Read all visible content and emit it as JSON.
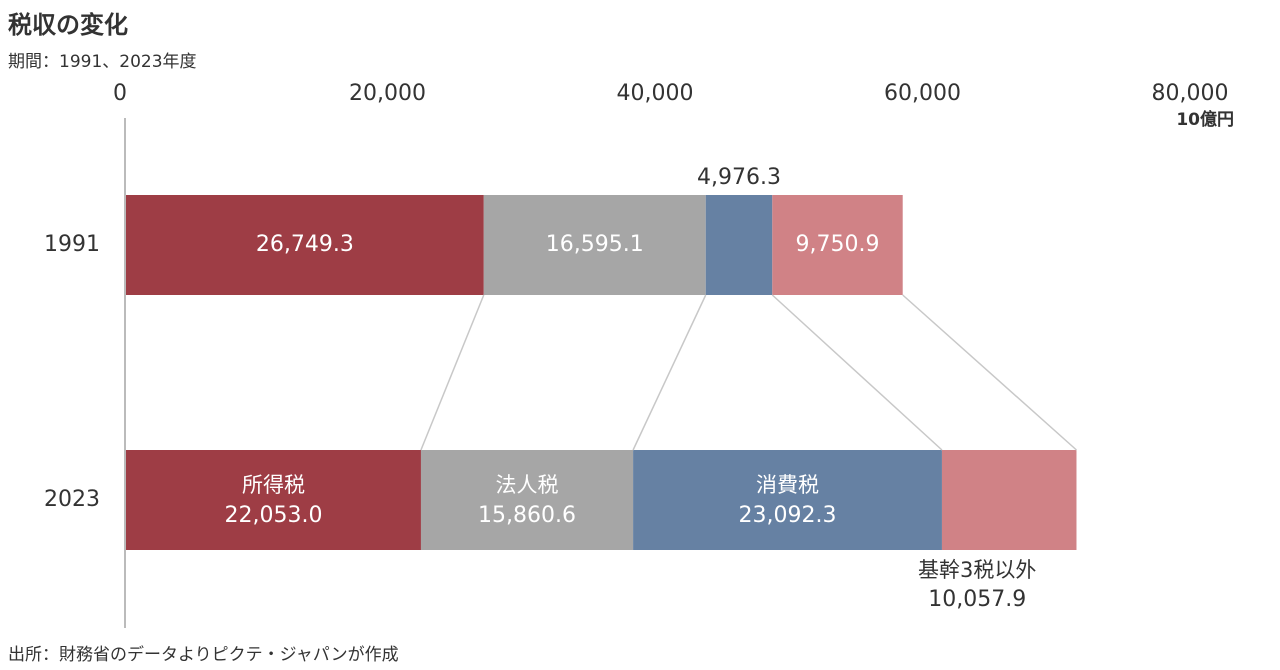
{
  "chart_data": {
    "type": "stacked-bar-horizontal",
    "title": "税収の変化",
    "subtitle": "期間：1991、2023年度",
    "source": "出所：財務省のデータよりピクテ・ジャパンが作成",
    "x_unit": "10億円",
    "categories": [
      "1991",
      "2023"
    ],
    "series": [
      {
        "name": "所得税",
        "color": "#9e3d45",
        "values": [
          26749.3,
          22053.0
        ],
        "value_labels": [
          "26,749.3",
          "22,053.0"
        ]
      },
      {
        "name": "法人税",
        "color": "#a6a6a6",
        "values": [
          16595.1,
          15860.6
        ],
        "value_labels": [
          "16,595.1",
          "15,860.6"
        ]
      },
      {
        "name": "消費税",
        "color": "#6681a3",
        "values": [
          4976.3,
          23092.3
        ],
        "value_labels": [
          "4,976.3",
          "23,092.3"
        ]
      },
      {
        "name": "基幹3税以外",
        "color": "#d08286",
        "values": [
          9750.9,
          10057.9
        ],
        "value_labels": [
          "9,750.9",
          "10,057.9"
        ]
      }
    ],
    "xlim": [
      0,
      80000
    ],
    "xticks": [
      0,
      {
        "value": 20000,
        "label": "20,000"
      },
      {
        "value": 40000,
        "label": "40,000"
      },
      {
        "value": 60000,
        "label": "60,000"
      },
      {
        "value": 80000,
        "label": "80,000"
      }
    ]
  }
}
